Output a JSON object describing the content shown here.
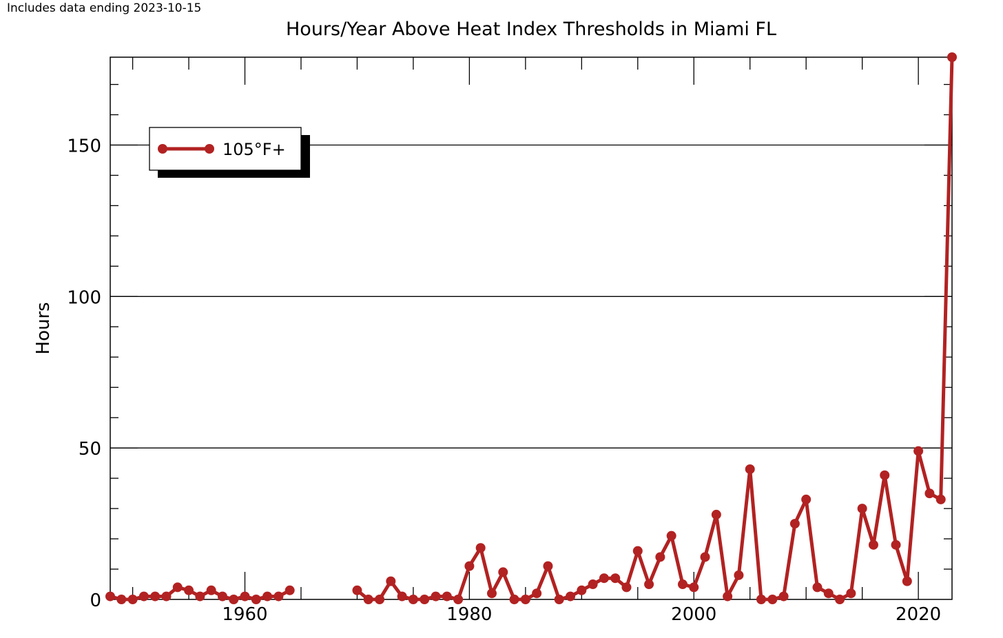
{
  "note": "Includes data ending 2023-10-15",
  "chart_data": {
    "type": "line",
    "title": "Hours/Year Above Heat Index Thresholds in Miami FL",
    "xlabel": "",
    "ylabel": "Hours",
    "xlim": [
      1948,
      2023
    ],
    "ylim": [
      0,
      179
    ],
    "x_ticks": [
      1960,
      1980,
      2000,
      2020
    ],
    "y_ticks": [
      0,
      50,
      100,
      150
    ],
    "grid": "horizontal",
    "legend": "top-left",
    "series": [
      {
        "name": "105°F+",
        "color": "#b22222",
        "points": [
          [
            1948,
            1
          ],
          [
            1949,
            0
          ],
          [
            1950,
            0
          ],
          [
            1951,
            1
          ],
          [
            1952,
            1
          ],
          [
            1953,
            1
          ],
          [
            1954,
            4
          ],
          [
            1955,
            3
          ],
          [
            1956,
            1
          ],
          [
            1957,
            3
          ],
          [
            1958,
            1
          ],
          [
            1959,
            0
          ],
          [
            1960,
            1
          ],
          [
            1961,
            0
          ],
          [
            1962,
            1
          ],
          [
            1963,
            1
          ],
          [
            1964,
            3
          ],
          null,
          [
            1970,
            3
          ],
          [
            1971,
            0
          ],
          [
            1972,
            0
          ],
          [
            1973,
            6
          ],
          [
            1974,
            1
          ],
          [
            1975,
            0
          ],
          [
            1976,
            0
          ],
          [
            1977,
            1
          ],
          [
            1978,
            1
          ],
          [
            1979,
            0
          ],
          [
            1980,
            11
          ],
          [
            1981,
            17
          ],
          [
            1982,
            2
          ],
          [
            1983,
            9
          ],
          [
            1984,
            0
          ],
          [
            1985,
            0
          ],
          [
            1986,
            2
          ],
          [
            1987,
            11
          ],
          [
            1988,
            0
          ],
          [
            1989,
            1
          ],
          [
            1990,
            3
          ],
          [
            1991,
            5
          ],
          [
            1992,
            7
          ],
          [
            1993,
            7
          ],
          [
            1994,
            4
          ],
          [
            1995,
            16
          ],
          [
            1996,
            5
          ],
          [
            1997,
            14
          ],
          [
            1998,
            21
          ],
          [
            1999,
            5
          ],
          [
            2000,
            4
          ],
          [
            2001,
            14
          ],
          [
            2002,
            28
          ],
          [
            2003,
            1
          ],
          [
            2004,
            8
          ],
          [
            2005,
            43
          ],
          [
            2006,
            0
          ],
          [
            2007,
            0
          ],
          [
            2008,
            1
          ],
          [
            2009,
            25
          ],
          [
            2010,
            33
          ],
          [
            2011,
            4
          ],
          [
            2012,
            2
          ],
          [
            2013,
            0
          ],
          [
            2014,
            2
          ],
          [
            2015,
            30
          ],
          [
            2016,
            18
          ],
          [
            2017,
            41
          ],
          [
            2018,
            18
          ],
          [
            2019,
            6
          ],
          [
            2020,
            49
          ],
          [
            2021,
            35
          ],
          [
            2022,
            33
          ],
          [
            2023,
            179
          ]
        ]
      }
    ]
  }
}
